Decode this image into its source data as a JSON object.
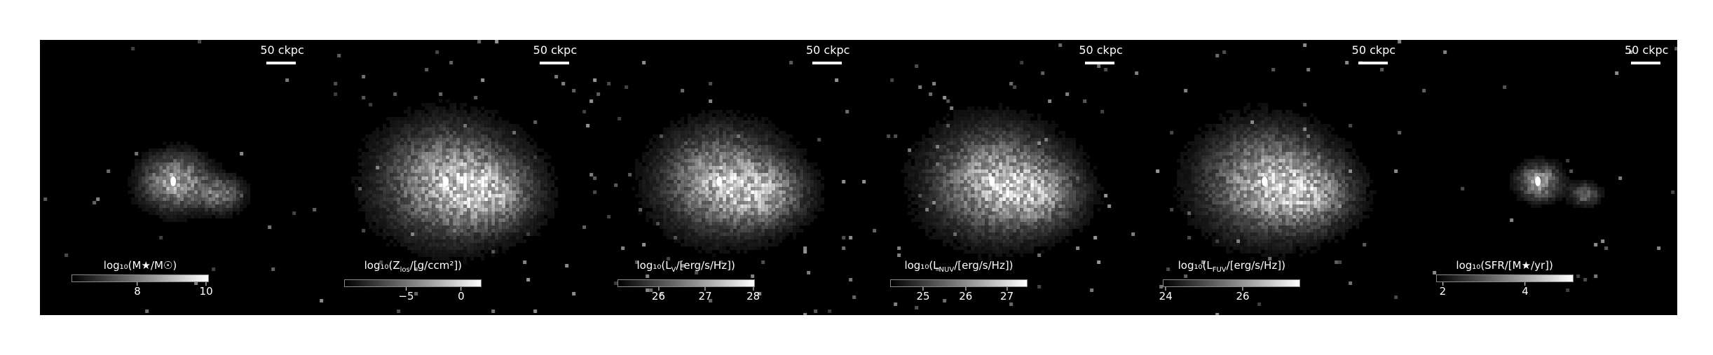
{
  "scalebar_label": "50 ckpc",
  "panels": [
    {
      "id": "mstar",
      "cbar_label": "log₁₀(M★/M☉)",
      "ticks": [
        "8",
        "10"
      ],
      "tick_pos": [
        0.48,
        0.98
      ],
      "spread": 0.55
    },
    {
      "id": "zlos",
      "cbar_label": "log₁₀(Z_los/[g/ccm²])",
      "ticks": [
        "−5",
        "0"
      ],
      "tick_pos": [
        0.45,
        0.85
      ],
      "spread": 1.1
    },
    {
      "id": "lv",
      "cbar_label": "log₁₀(L_V/[erg/s/Hz])",
      "ticks": [
        "26",
        "27",
        "28"
      ],
      "tick_pos": [
        0.3,
        0.64,
        0.99
      ],
      "spread": 1.0
    },
    {
      "id": "lnuv",
      "cbar_label": "log₁₀(L_NUV/[erg/s/Hz])",
      "ticks": [
        "25",
        "26",
        "27"
      ],
      "tick_pos": [
        0.24,
        0.55,
        0.85
      ],
      "spread": 1.05
    },
    {
      "id": "lfuv",
      "cbar_label": "log₁₀(L_FUV/[erg/s/Hz])",
      "ticks": [
        "24",
        "26"
      ],
      "tick_pos": [
        0.02,
        0.58
      ],
      "spread": 1.05
    },
    {
      "id": "sfr",
      "cbar_label": "log₁₀(SFR/[M★/yr])",
      "ticks": [
        "2",
        "4"
      ],
      "tick_pos": [
        0.05,
        0.65
      ],
      "spread": 0.35
    }
  ]
}
